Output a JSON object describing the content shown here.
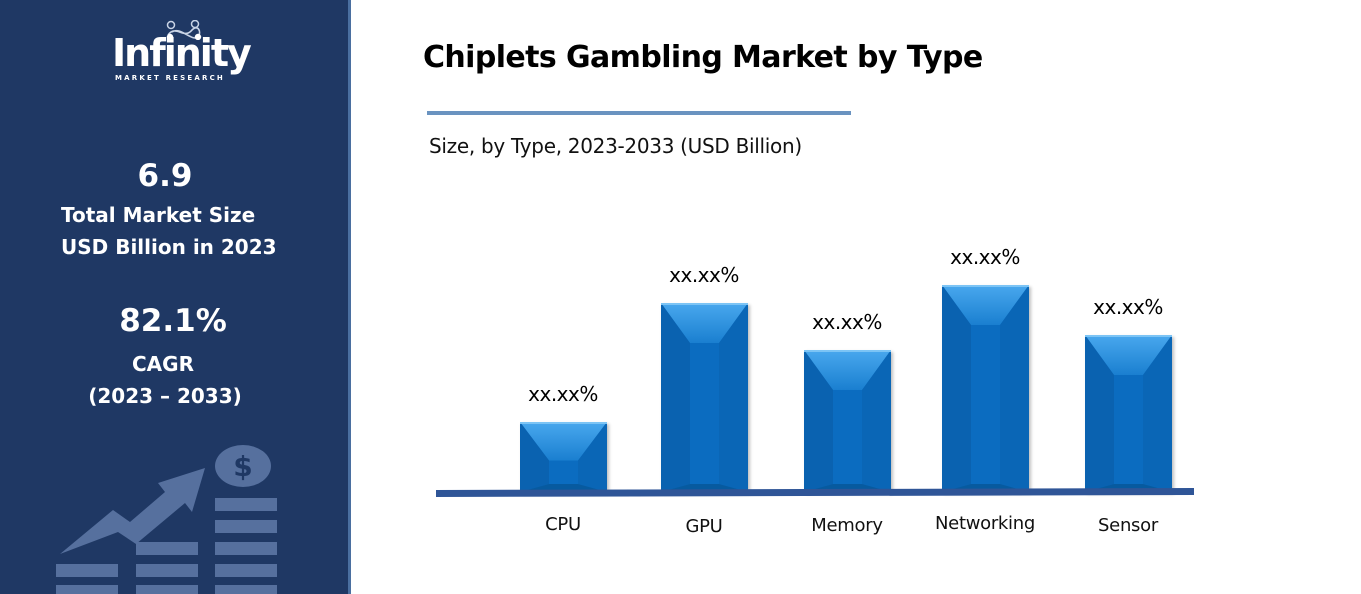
{
  "brand": {
    "name": "Infinity",
    "tagline": "MARKET RESEARCH"
  },
  "sidebar": {
    "market_size_value": "6.9",
    "market_size_label_line1": "Total Market Size",
    "market_size_label_line2": "USD Billion in 2023",
    "cagr_value": "82.1%",
    "cagr_label": "CAGR",
    "cagr_period": "(2023 – 2033)",
    "illustration": "growth-chart-dollar-icon"
  },
  "colors": {
    "sidebar_bg": "#1f3864",
    "sidebar_edge": "#4a6fa0",
    "bar_fill": "#0b6cc0",
    "bar_highlight": "#3a9be6",
    "baseline": "#2f5597",
    "title_rule": "#6a93c0"
  },
  "chart_data": {
    "type": "bar",
    "title": "Chiplets Gambling Market by Type",
    "subtitle": "Size, by Type, 2023-2033 (USD Billion)",
    "xlabel": "",
    "ylabel": "",
    "categories": [
      "CPU",
      "GPU",
      "Memory",
      "Networking",
      "Sensor"
    ],
    "values": [
      70,
      189,
      142,
      207,
      157
    ],
    "value_labels": [
      "xx.xx%",
      "xx.xx%",
      "xx.xx%",
      "xx.xx%",
      "xx.xx%"
    ],
    "values_note": "relative bar heights in pixels; actual values masked as xx.xx%",
    "grid": false,
    "legend": null,
    "axis_visible": false
  }
}
